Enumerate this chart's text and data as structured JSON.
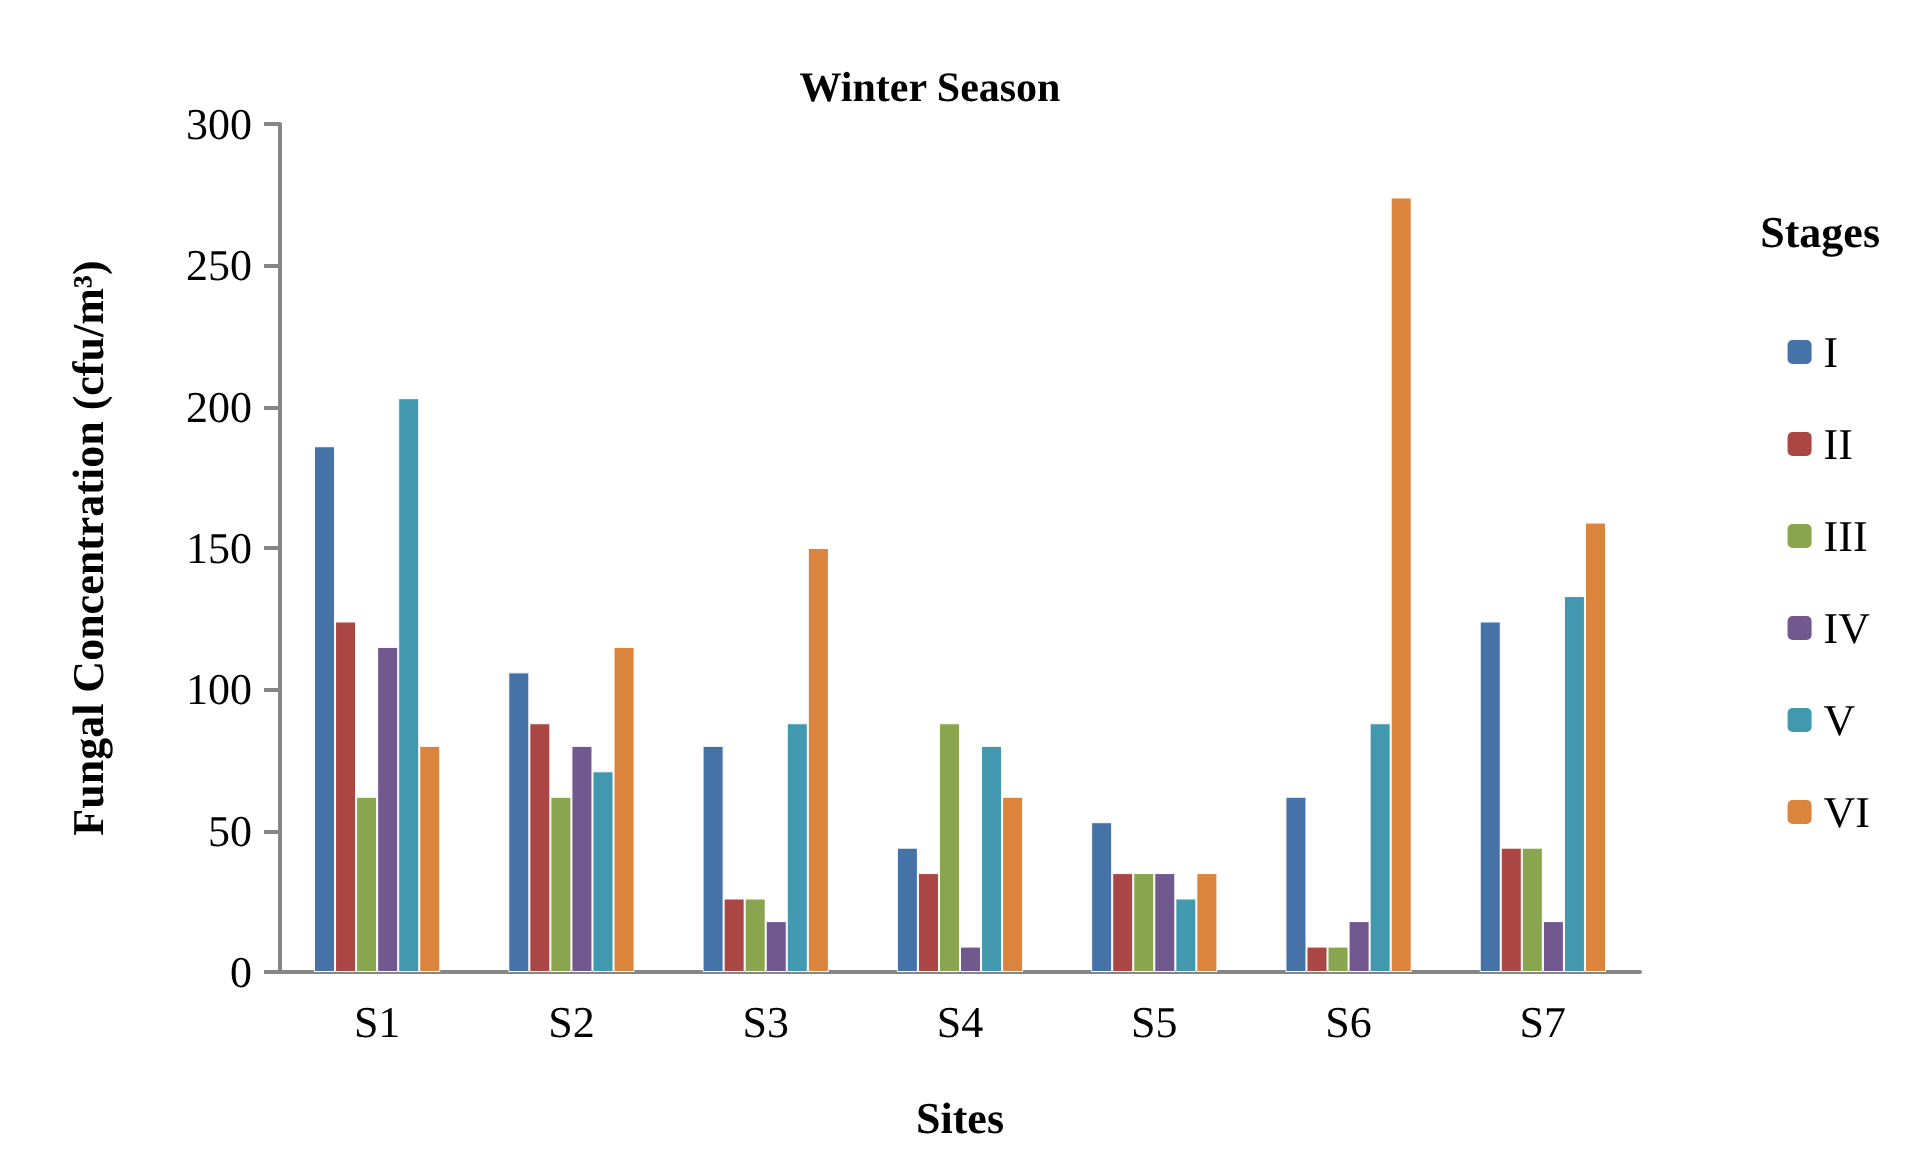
{
  "chart_data": {
    "type": "bar",
    "title": "Winter Season",
    "xlabel": "Sites",
    "ylabel": "Fungal Concentration (cfu/m³)",
    "legend_title": "Stages",
    "categories": [
      "S1",
      "S2",
      "S3",
      "S4",
      "S5",
      "S6",
      "S7"
    ],
    "series": [
      {
        "name": "I",
        "color": "#4572a7",
        "values": [
          186,
          106,
          80,
          44,
          53,
          62,
          124
        ]
      },
      {
        "name": "II",
        "color": "#aa4643",
        "values": [
          124,
          88,
          26,
          35,
          35,
          9,
          44
        ]
      },
      {
        "name": "III",
        "color": "#89a54e",
        "values": [
          62,
          62,
          26,
          88,
          35,
          9,
          44
        ]
      },
      {
        "name": "IV",
        "color": "#71588f",
        "values": [
          115,
          80,
          18,
          9,
          35,
          18,
          18
        ]
      },
      {
        "name": "V",
        "color": "#4198af",
        "values": [
          203,
          71,
          88,
          80,
          26,
          88,
          133
        ]
      },
      {
        "name": "VI",
        "color": "#db843d",
        "values": [
          80,
          115,
          150,
          62,
          35,
          274,
          159
        ]
      }
    ],
    "ylim": [
      0,
      300
    ],
    "yticks": [
      0,
      50,
      100,
      150,
      200,
      250,
      300
    ],
    "grid": false,
    "legend": "right"
  }
}
